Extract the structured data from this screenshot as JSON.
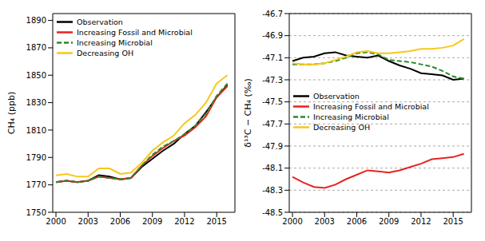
{
  "chart_data": [
    {
      "type": "line",
      "y_label": "CH₄ (ppb)",
      "x": [
        2000,
        2001,
        2002,
        2003,
        2004,
        2005,
        2006,
        2007,
        2008,
        2009,
        2010,
        2011,
        2012,
        2013,
        2014,
        2015,
        2016
      ],
      "xlim": [
        1999.7,
        2016.7
      ],
      "xticks": [
        2000,
        2003,
        2006,
        2009,
        2012,
        2015
      ],
      "ylim": [
        1750,
        1895
      ],
      "yticks": [
        1750,
        1770,
        1790,
        1810,
        1830,
        1850,
        1870,
        1890
      ],
      "grid": false,
      "legend": "upper left",
      "series": [
        {
          "name": "Observation",
          "color": "#000000",
          "values": [
            1772,
            1773,
            1772,
            1773,
            1777,
            1776,
            1774,
            1775,
            1783,
            1789,
            1795,
            1800,
            1807,
            1813,
            1823,
            1834,
            1843
          ]
        },
        {
          "name": "Increasing Fossil and Microbial",
          "color": "#e8231f",
          "values": [
            1772,
            1773,
            1772,
            1773,
            1776,
            1775,
            1774,
            1775,
            1784,
            1791,
            1797,
            1802,
            1806,
            1812,
            1820,
            1834,
            1842
          ]
        },
        {
          "name": "Increasing Microbial",
          "color": "#2a8a2a",
          "line_style": "dashed",
          "values": [
            1772,
            1773,
            1772,
            1773,
            1776,
            1775,
            1774,
            1775,
            1784,
            1792,
            1798,
            1802,
            1807,
            1813,
            1822,
            1835,
            1844
          ]
        },
        {
          "name": "Decreasing OH",
          "color": "#f7c71a",
          "values": [
            1777,
            1778,
            1776,
            1776,
            1782,
            1782,
            1778,
            1779,
            1786,
            1795,
            1801,
            1806,
            1815,
            1821,
            1830,
            1844,
            1850
          ]
        }
      ]
    },
    {
      "type": "line",
      "y_label": "δ¹³C − CH₄ (‰)",
      "x": [
        2000,
        2001,
        2002,
        2003,
        2004,
        2005,
        2006,
        2007,
        2008,
        2009,
        2010,
        2011,
        2012,
        2013,
        2014,
        2015,
        2016
      ],
      "xlim": [
        1999.7,
        2016.7
      ],
      "xticks": [
        2000,
        2003,
        2006,
        2009,
        2012,
        2015
      ],
      "ylim": [
        -48.5,
        -46.7
      ],
      "yticks": [
        -48.5,
        -48.3,
        -48.1,
        -47.9,
        -47.7,
        -47.5,
        -47.3,
        -47.1,
        -46.9,
        -46.7
      ],
      "grid": true,
      "legend": "center left",
      "series": [
        {
          "name": "Observation",
          "color": "#000000",
          "values": [
            -47.13,
            -47.1,
            -47.09,
            -47.06,
            -47.05,
            -47.08,
            -47.09,
            -47.1,
            -47.08,
            -47.13,
            -47.17,
            -47.2,
            -47.24,
            -47.25,
            -47.26,
            -47.3,
            -47.29
          ]
        },
        {
          "name": "Increasing Fossil and Microbial",
          "color": "#e8231f",
          "values": [
            -48.18,
            -48.23,
            -48.27,
            -48.28,
            -48.25,
            -48.2,
            -48.16,
            -48.12,
            -48.13,
            -48.14,
            -48.12,
            -48.09,
            -48.06,
            -48.02,
            -48.01,
            -48.0,
            -47.97
          ]
        },
        {
          "name": "Increasing Microbial",
          "color": "#2a8a2a",
          "line_style": "dashed",
          "values": [
            -47.16,
            -47.16,
            -47.16,
            -47.15,
            -47.13,
            -47.1,
            -47.06,
            -47.05,
            -47.07,
            -47.12,
            -47.13,
            -47.14,
            -47.16,
            -47.18,
            -47.22,
            -47.27,
            -47.29
          ]
        },
        {
          "name": "Decreasing OH",
          "color": "#f7c71a",
          "values": [
            -47.15,
            -47.16,
            -47.16,
            -47.15,
            -47.12,
            -47.09,
            -47.05,
            -47.04,
            -47.06,
            -47.06,
            -47.05,
            -47.04,
            -47.02,
            -47.02,
            -47.01,
            -46.99,
            -46.93
          ]
        }
      ]
    }
  ]
}
